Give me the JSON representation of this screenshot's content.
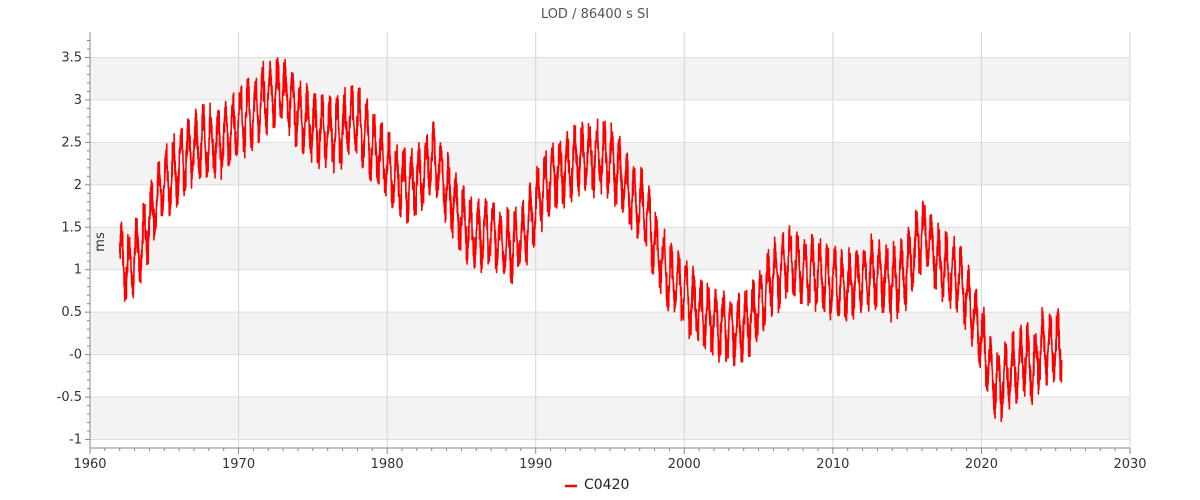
{
  "chart_data": {
    "type": "line",
    "title": "LOD / 86400 s SI",
    "xlabel": "",
    "ylabel": "ms",
    "xlim": [
      1960,
      2030
    ],
    "ylim": [
      -1.1,
      3.8
    ],
    "x_ticks": [
      1960,
      1970,
      1980,
      1990,
      2000,
      2010,
      2020,
      2030
    ],
    "x_tick_labels": [
      "1960",
      "1970",
      "1980",
      "1990",
      "2000",
      "2010",
      "2020",
      "2030"
    ],
    "y_ticks": [
      -1,
      -0.5,
      0,
      0.5,
      1,
      1.5,
      2,
      2.5,
      3,
      3.5
    ],
    "y_tick_labels": [
      "-1",
      "-0.5",
      "-0",
      "0.5",
      "1",
      "1.5",
      "2",
      "2.5",
      "3",
      "3.5"
    ],
    "grid": true,
    "band_shading": "alternating horizontal bands",
    "legend_position": "bottom-center",
    "series": [
      {
        "name": "C0420",
        "color": "#ff0000",
        "trend_x": [
          1962.0,
          1962.5,
          1963.0,
          1963.5,
          1964.0,
          1964.5,
          1965.0,
          1965.5,
          1966.0,
          1966.5,
          1967.0,
          1967.5,
          1968.0,
          1968.5,
          1969.0,
          1969.5,
          1970.0,
          1970.5,
          1971.0,
          1971.5,
          1972.0,
          1972.5,
          1973.0,
          1973.5,
          1974.0,
          1974.5,
          1975.0,
          1975.5,
          1976.0,
          1976.5,
          1977.0,
          1977.5,
          1978.0,
          1978.5,
          1979.0,
          1979.5,
          1980.0,
          1980.5,
          1981.0,
          1981.5,
          1982.0,
          1982.5,
          1983.0,
          1983.5,
          1984.0,
          1984.5,
          1985.0,
          1985.5,
          1986.0,
          1986.5,
          1987.0,
          1987.5,
          1988.0,
          1988.5,
          1989.0,
          1989.5,
          1990.0,
          1990.5,
          1991.0,
          1991.5,
          1992.0,
          1992.5,
          1993.0,
          1993.5,
          1994.0,
          1994.5,
          1995.0,
          1995.5,
          1996.0,
          1996.5,
          1997.0,
          1997.5,
          1998.0,
          1998.5,
          1999.0,
          1999.5,
          2000.0,
          2000.5,
          2001.0,
          2001.5,
          2002.0,
          2002.5,
          2003.0,
          2003.5,
          2004.0,
          2004.5,
          2005.0,
          2005.5,
          2006.0,
          2006.5,
          2007.0,
          2007.5,
          2008.0,
          2008.5,
          2009.0,
          2009.5,
          2010.0,
          2010.5,
          2011.0,
          2011.5,
          2012.0,
          2012.5,
          2013.0,
          2013.5,
          2014.0,
          2014.5,
          2015.0,
          2015.5,
          2016.0,
          2016.5,
          2017.0,
          2017.5,
          2018.0,
          2018.5,
          2019.0,
          2019.5,
          2020.0,
          2020.5,
          2021.0,
          2021.5,
          2022.0,
          2022.5,
          2023.0,
          2023.5,
          2024.0,
          2024.5,
          2025.0,
          2025.4
        ],
        "trend_y": [
          1.2,
          1.0,
          1.15,
          1.25,
          1.6,
          1.85,
          2.0,
          2.1,
          2.25,
          2.35,
          2.45,
          2.5,
          2.5,
          2.5,
          2.55,
          2.65,
          2.75,
          2.8,
          2.85,
          2.95,
          3.05,
          3.1,
          3.1,
          3.0,
          2.85,
          2.75,
          2.7,
          2.6,
          2.65,
          2.6,
          2.65,
          2.75,
          2.75,
          2.6,
          2.45,
          2.35,
          2.2,
          2.1,
          2.05,
          2.0,
          2.05,
          2.15,
          2.35,
          2.2,
          1.95,
          1.8,
          1.6,
          1.45,
          1.4,
          1.45,
          1.45,
          1.35,
          1.25,
          1.3,
          1.35,
          1.55,
          1.75,
          1.95,
          2.1,
          2.15,
          2.2,
          2.25,
          2.3,
          2.35,
          2.3,
          2.35,
          2.3,
          2.15,
          2.0,
          1.85,
          1.75,
          1.65,
          1.3,
          1.1,
          0.9,
          0.85,
          0.75,
          0.6,
          0.55,
          0.45,
          0.4,
          0.35,
          0.3,
          0.3,
          0.35,
          0.45,
          0.55,
          0.75,
          0.9,
          1.0,
          1.1,
          1.05,
          1.0,
          1.0,
          0.95,
          0.9,
          0.85,
          0.8,
          0.8,
          0.85,
          0.9,
          0.95,
          0.95,
          0.9,
          0.85,
          0.9,
          1.0,
          1.2,
          1.45,
          1.35,
          1.15,
          1.0,
          0.95,
          0.9,
          0.7,
          0.45,
          0.2,
          -0.15,
          -0.35,
          -0.3,
          -0.2,
          -0.15,
          0.0,
          -0.2,
          0.1,
          0.05,
          0.1,
          0.1
        ],
        "amplitude": 0.3,
        "cycles_per_year": 2
      }
    ]
  }
}
